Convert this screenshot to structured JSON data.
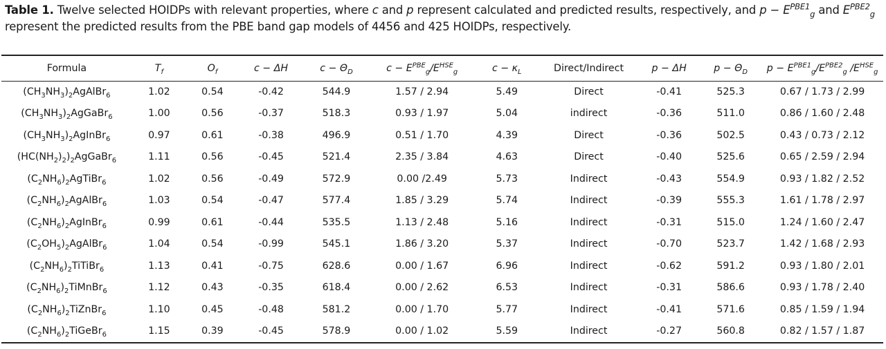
{
  "caption": {
    "label": "Table 1.",
    "text_a": " Twelve selected HOIDPs with relevant properties, where ",
    "c": "c",
    "text_b": " and ",
    "p": "p",
    "text_c": " represent calculated and predicted results, respectively, and ",
    "p_e_pbe1": "p − E",
    "sup1": "PBE1",
    "sub1": "g",
    "text_d": " and ",
    "e_pbe2": "E",
    "sup2": "PBE2",
    "sub2": "g",
    "line2": "represent the predicted results from the PBE band gap models of 4456 and 425 HOIDPs, respectively."
  },
  "headers": {
    "formula": "Formula",
    "tf": "T",
    "tf_sub": "f",
    "of": "O",
    "of_sub": "f",
    "c_dh": "c − ΔH",
    "c_theta": "c − Θ",
    "c_theta_sub": "D",
    "c_e_prefix": "c − E",
    "c_e_sup1": "PBE",
    "c_e_mid": "/E",
    "c_e_sup2": "HSE",
    "g": "g",
    "c_kappa": "c − κ",
    "c_kappa_sub": "L",
    "direct": "Direct/Indirect",
    "p_dh": "p − ΔH",
    "p_theta": "p − Θ",
    "p_theta_sub": "D",
    "p_e_prefix": "p − E",
    "p_e_sup1": "PBE1",
    "p_e_mid1": "/E",
    "p_e_sup2": "PBE2",
    "p_e_mid2": " /E",
    "p_e_sup3": "HSE"
  },
  "rows": [
    {
      "f": [
        [
          "(CH"
        ],
        [
          "3",
          "sub"
        ],
        [
          "NH"
        ],
        [
          "3",
          "sub"
        ],
        [
          ")"
        ],
        [
          "2",
          "sub"
        ],
        [
          "AgAlBr"
        ],
        [
          "6",
          "sub"
        ]
      ],
      "tf": "1.02",
      "of": "0.54",
      "cdh": "-0.42",
      "ctheta": "544.9",
      "ce": "1.57 / 2.94",
      "ck": "5.49",
      "di": "Direct",
      "pdh": "-0.41",
      "ptheta": "525.3",
      "pe": "0.67 / 1.73 / 2.99"
    },
    {
      "f": [
        [
          "(CH"
        ],
        [
          "3",
          "sub"
        ],
        [
          "NH"
        ],
        [
          "3",
          "sub"
        ],
        [
          ")"
        ],
        [
          "2",
          "sub"
        ],
        [
          "AgGaBr"
        ],
        [
          "6",
          "sub"
        ]
      ],
      "tf": "1.00",
      "of": "0.56",
      "cdh": "-0.37",
      "ctheta": "518.3",
      "ce": "0.93 / 1.97",
      "ck": "5.04",
      "di": "indirect",
      "pdh": "-0.36",
      "ptheta": "511.0",
      "pe": "0.86 / 1.60 / 2.48"
    },
    {
      "f": [
        [
          "(CH"
        ],
        [
          "3",
          "sub"
        ],
        [
          "NH"
        ],
        [
          "3",
          "sub"
        ],
        [
          ")"
        ],
        [
          "2",
          "sub"
        ],
        [
          "AgInBr"
        ],
        [
          "6",
          "sub"
        ]
      ],
      "tf": "0.97",
      "of": "0.61",
      "cdh": "-0.38",
      "ctheta": "496.9",
      "ce": "0.51 / 1.70",
      "ck": "4.39",
      "di": "Direct",
      "pdh": "-0.36",
      "ptheta": "502.5",
      "pe": "0.43 / 0.73 / 2.12"
    },
    {
      "f": [
        [
          "(HC(NH"
        ],
        [
          "2",
          "sub"
        ],
        [
          ")"
        ],
        [
          "2",
          "sub"
        ],
        [
          ")"
        ],
        [
          "2",
          "sub"
        ],
        [
          "AgGaBr"
        ],
        [
          "6",
          "sub"
        ]
      ],
      "tf": "1.11",
      "of": "0.56",
      "cdh": "-0.45",
      "ctheta": "521.4",
      "ce": "2.35 / 3.84",
      "ck": "4.63",
      "di": "Direct",
      "pdh": "-0.40",
      "ptheta": "525.6",
      "pe": "0.65 / 2.59 / 2.94"
    },
    {
      "f": [
        [
          "(C"
        ],
        [
          "2",
          "sub"
        ],
        [
          "NH"
        ],
        [
          "6",
          "sub"
        ],
        [
          ")"
        ],
        [
          "2",
          "sub"
        ],
        [
          "AgTiBr"
        ],
        [
          "6",
          "sub"
        ]
      ],
      "tf": "1.02",
      "of": "0.56",
      "cdh": "-0.49",
      "ctheta": "572.9",
      "ce": "0.00 /2.49",
      "ck": "5.73",
      "di": "Indirect",
      "pdh": "-0.43",
      "ptheta": "554.9",
      "pe": "0.93 / 1.82 / 2.52"
    },
    {
      "f": [
        [
          "(C"
        ],
        [
          "2",
          "sub"
        ],
        [
          "NH"
        ],
        [
          "6",
          "sub"
        ],
        [
          ")"
        ],
        [
          "2",
          "sub"
        ],
        [
          "AgAlBr"
        ],
        [
          "6",
          "sub"
        ]
      ],
      "tf": "1.03",
      "of": "0.54",
      "cdh": "-0.47",
      "ctheta": "577.4",
      "ce": "1.85 / 3.29",
      "ck": "5.74",
      "di": "Indirect",
      "pdh": "-0.39",
      "ptheta": "555.3",
      "pe": "1.61 / 1.78 / 2.97"
    },
    {
      "f": [
        [
          "(C"
        ],
        [
          "2",
          "sub"
        ],
        [
          "NH"
        ],
        [
          "6",
          "sub"
        ],
        [
          ")"
        ],
        [
          "2",
          "sub"
        ],
        [
          "AgInBr"
        ],
        [
          "6",
          "sub"
        ]
      ],
      "tf": "0.99",
      "of": "0.61",
      "cdh": "-0.44",
      "ctheta": "535.5",
      "ce": "1.13 / 2.48",
      "ck": "5.16",
      "di": "Indirect",
      "pdh": "-0.31",
      "ptheta": "515.0",
      "pe": "1.24 / 1.60 / 2.47"
    },
    {
      "f": [
        [
          "(C"
        ],
        [
          "2",
          "sub"
        ],
        [
          "OH"
        ],
        [
          "5",
          "sub"
        ],
        [
          ")"
        ],
        [
          "2",
          "sub"
        ],
        [
          "AgAlBr"
        ],
        [
          "6",
          "sub"
        ]
      ],
      "tf": "1.04",
      "of": "0.54",
      "cdh": "-0.99",
      "ctheta": "545.1",
      "ce": "1.86 / 3.20",
      "ck": "5.37",
      "di": "Indirect",
      "pdh": "-0.70",
      "ptheta": "523.7",
      "pe": "1.42 / 1.68 / 2.93"
    },
    {
      "f": [
        [
          "(C"
        ],
        [
          "2",
          "sub"
        ],
        [
          "NH"
        ],
        [
          "6",
          "sub"
        ],
        [
          ")"
        ],
        [
          "2",
          "sub"
        ],
        [
          "TiTiBr"
        ],
        [
          "6",
          "sub"
        ]
      ],
      "tf": "1.13",
      "of": "0.41",
      "cdh": "-0.75",
      "ctheta": "628.6",
      "ce": "0.00 / 1.67",
      "ck": "6.96",
      "di": "Indirect",
      "pdh": "-0.62",
      "ptheta": "591.2",
      "pe": "0.93 / 1.80 / 2.01"
    },
    {
      "f": [
        [
          "(C"
        ],
        [
          "2",
          "sub"
        ],
        [
          "NH"
        ],
        [
          "6",
          "sub"
        ],
        [
          ")"
        ],
        [
          "2",
          "sub"
        ],
        [
          "TiMnBr"
        ],
        [
          "6",
          "sub"
        ]
      ],
      "tf": "1.12",
      "of": "0.43",
      "cdh": "-0.35",
      "ctheta": "618.4",
      "ce": "0.00 / 2.62",
      "ck": "6.53",
      "di": "Indirect",
      "pdh": "-0.31",
      "ptheta": "586.6",
      "pe": "0.93 / 1.78 / 2.40"
    },
    {
      "f": [
        [
          "(C"
        ],
        [
          "2",
          "sub"
        ],
        [
          "NH"
        ],
        [
          "6",
          "sub"
        ],
        [
          ")"
        ],
        [
          "2",
          "sub"
        ],
        [
          "TiZnBr"
        ],
        [
          "6",
          "sub"
        ]
      ],
      "tf": "1.10",
      "of": "0.45",
      "cdh": "-0.48",
      "ctheta": "581.2",
      "ce": "0.00 / 1.70",
      "ck": "5.77",
      "di": "Indirect",
      "pdh": "-0.41",
      "ptheta": "571.6",
      "pe": "0.85 / 1.59 / 1.94"
    },
    {
      "f": [
        [
          "(C"
        ],
        [
          "2",
          "sub"
        ],
        [
          "NH"
        ],
        [
          "6",
          "sub"
        ],
        [
          ")"
        ],
        [
          "2",
          "sub"
        ],
        [
          "TiGeBr"
        ],
        [
          "6",
          "sub"
        ]
      ],
      "tf": "1.15",
      "of": "0.39",
      "cdh": "-0.45",
      "ctheta": "578.9",
      "ce": "0.00 / 1.02",
      "ck": "5.59",
      "di": "Indirect",
      "pdh": "-0.27",
      "ptheta": "560.8",
      "pe": "0.82 / 1.57 / 1.87"
    }
  ]
}
